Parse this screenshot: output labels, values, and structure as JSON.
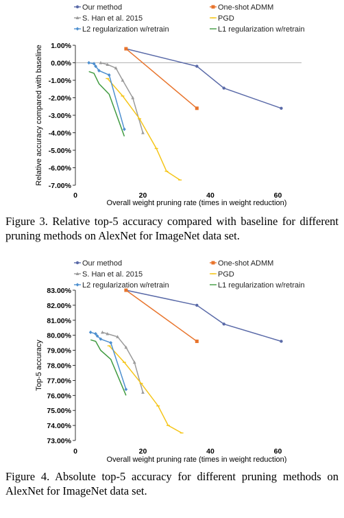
{
  "chart_data": [
    {
      "type": "line",
      "xlabel": "Overall weight pruning rate (times in weight reduction)",
      "ylabel": "Relative accuracy compared with baseline",
      "xlim": [
        0,
        67
      ],
      "ylim": [
        -7,
        1
      ],
      "x_ticks": [
        0,
        20,
        40,
        60
      ],
      "y_ticks": [
        1,
        0,
        -1,
        -2,
        -3,
        -4,
        -5,
        -6,
        -7
      ],
      "y_tick_labels": [
        "1.00%",
        "0.00%",
        "-1.00%",
        "-2.00%",
        "-3.00%",
        "-4.00%",
        "-5.00%",
        "-6.00%",
        "-7.00%"
      ],
      "zero_line": true,
      "grid": false,
      "legend": "top",
      "series": [
        {
          "name": "Our method",
          "color": "#5a6aa8",
          "marker": "dot",
          "x": [
            15,
            36,
            44,
            61
          ],
          "y": [
            0.8,
            -0.2,
            -1.45,
            -2.6
          ]
        },
        {
          "name": "One-shot ADMM",
          "color": "#e8742c",
          "marker": "square",
          "x": [
            15,
            36
          ],
          "y": [
            0.8,
            -2.6
          ]
        },
        {
          "name": "S. Han et al. 2015",
          "color": "#9a9a9a",
          "marker": "triangle",
          "x": [
            7.5,
            9.5,
            12,
            14,
            17,
            20
          ],
          "y": [
            0.0,
            -0.1,
            -0.3,
            -1.0,
            -2.0,
            -4.0
          ]
        },
        {
          "name": "PGD",
          "color": "#f5c518",
          "marker": "dash",
          "x": [
            9.5,
            14,
            19,
            24,
            27,
            31
          ],
          "y": [
            -0.9,
            -1.9,
            -3.2,
            -4.9,
            -6.2,
            -6.7
          ]
        },
        {
          "name": "L2 regularization w/retrain",
          "color": "#4d8fcf",
          "marker": "diamond",
          "x": [
            4,
            5.5,
            6,
            7,
            10,
            14.5
          ],
          "y": [
            0.0,
            -0.05,
            -0.2,
            -0.45,
            -0.7,
            -3.8
          ]
        },
        {
          "name": "L1 regularization w/retrain",
          "color": "#3f9a3f",
          "marker": "none",
          "x": [
            4,
            5.5,
            7,
            10,
            14.5
          ],
          "y": [
            -0.5,
            -0.6,
            -1.2,
            -1.8,
            -4.2
          ]
        }
      ],
      "caption": "Figure 3. Relative top-5 accuracy compared with baseline for different pruning methods on AlexNet for ImageNet data set."
    },
    {
      "type": "line",
      "xlabel": "Overall weight pruning rate (times in weight reduction)",
      "ylabel": "Top-5 accuracy",
      "xlim": [
        0,
        67
      ],
      "ylim": [
        73,
        83
      ],
      "x_ticks": [
        0,
        20,
        40,
        60
      ],
      "y_ticks": [
        83,
        82,
        81,
        80,
        79,
        78,
        77,
        76,
        75,
        74,
        73
      ],
      "y_tick_labels": [
        "83.00%",
        "82.00%",
        "81.00%",
        "80.00%",
        "79.00%",
        "78.00%",
        "77.00%",
        "76.00%",
        "75.00%",
        "74.00%",
        "73.00%"
      ],
      "zero_line": false,
      "grid": false,
      "legend": "top",
      "series": [
        {
          "name": "Our method",
          "color": "#5a6aa8",
          "marker": "dot",
          "x": [
            15,
            36,
            44,
            61
          ],
          "y": [
            83.0,
            82.0,
            80.75,
            79.6
          ]
        },
        {
          "name": "One-shot ADMM",
          "color": "#e8742c",
          "marker": "square",
          "x": [
            15,
            36
          ],
          "y": [
            83.0,
            79.6
          ]
        },
        {
          "name": "S. Han et al. 2015",
          "color": "#9a9a9a",
          "marker": "triangle",
          "x": [
            8,
            9.5,
            12.5,
            15,
            17.5,
            20
          ],
          "y": [
            80.2,
            80.1,
            79.9,
            79.2,
            78.2,
            76.2
          ]
        },
        {
          "name": "PGD",
          "color": "#f5c518",
          "marker": "dash",
          "x": [
            10,
            14.5,
            19.5,
            24.5,
            27.5,
            31.5
          ],
          "y": [
            79.3,
            78.2,
            76.8,
            75.3,
            74.0,
            73.5
          ]
        },
        {
          "name": "L2 regularization w/retrain",
          "color": "#4d8fcf",
          "marker": "diamond",
          "x": [
            4.5,
            6,
            6.5,
            7.5,
            10.5,
            15
          ],
          "y": [
            80.2,
            80.1,
            79.95,
            79.75,
            79.5,
            76.4
          ]
        },
        {
          "name": "L1 regularization w/retrain",
          "color": "#3f9a3f",
          "marker": "none",
          "x": [
            4.5,
            6,
            7.5,
            10.5,
            15
          ],
          "y": [
            79.7,
            79.6,
            79.0,
            78.4,
            76.0
          ]
        }
      ],
      "caption": "Figure 4. Absolute top-5 accuracy for different pruning methods on AlexNet for ImageNet data set."
    }
  ]
}
